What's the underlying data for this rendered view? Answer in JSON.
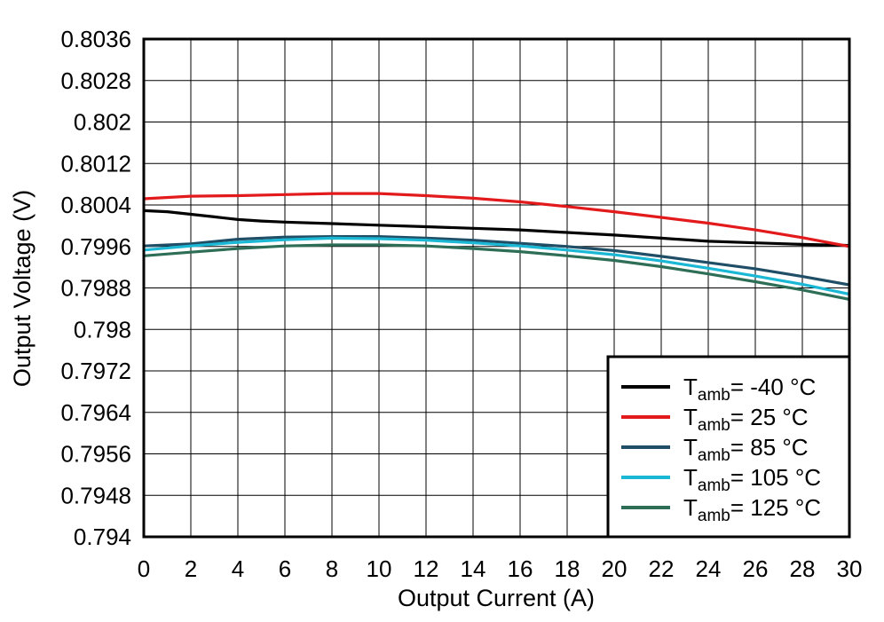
{
  "chart_data": {
    "type": "line",
    "xlabel": "Output Current (A)",
    "ylabel": "Output Voltage (V)",
    "xlim": [
      0,
      30
    ],
    "ylim": [
      0.794,
      0.8036
    ],
    "x_ticks": [
      "0",
      "2",
      "4",
      "6",
      "8",
      "10",
      "12",
      "14",
      "16",
      "18",
      "20",
      "22",
      "24",
      "26",
      "28",
      "30"
    ],
    "y_ticks": [
      "0.8036",
      "0.8028",
      "0.802",
      "0.8012",
      "0.8004",
      "0.7996",
      "0.7988",
      "0.798",
      "0.7972",
      "0.7964",
      "0.7956",
      "0.7948",
      "0.794"
    ],
    "x_tick_values": [
      0,
      2,
      4,
      6,
      8,
      10,
      12,
      14,
      16,
      18,
      20,
      22,
      24,
      26,
      28,
      30
    ],
    "y_tick_values": [
      0.8036,
      0.8028,
      0.802,
      0.8012,
      0.8004,
      0.7996,
      0.7988,
      0.798,
      0.7972,
      0.7964,
      0.7956,
      0.7948,
      0.794
    ],
    "grid": true,
    "legend_position": "bottom-right",
    "series": [
      {
        "name": "T_amb = -40 °C",
        "legend_main": "T",
        "legend_sub": "amb",
        "legend_rest": "= -40 °C",
        "color": "#000000",
        "x": [
          0,
          1,
          2,
          3,
          4,
          5,
          6,
          8,
          10,
          12,
          14,
          16,
          18,
          20,
          22,
          24,
          26,
          28,
          30
        ],
        "y": [
          0.80029,
          0.80027,
          0.80022,
          0.80017,
          0.80012,
          0.80009,
          0.80007,
          0.80004,
          0.80001,
          0.79998,
          0.79995,
          0.79992,
          0.79987,
          0.79982,
          0.79976,
          0.7997,
          0.79967,
          0.79964,
          0.79962
        ]
      },
      {
        "name": "T_amb = 25 °C",
        "legend_main": "T",
        "legend_sub": "amb",
        "legend_rest": "= 25 °C",
        "color": "#e31a1c",
        "x": [
          0,
          2,
          4,
          6,
          8,
          10,
          12,
          14,
          16,
          18,
          20,
          22,
          24,
          26,
          28,
          30
        ],
        "y": [
          0.80052,
          0.80057,
          0.80058,
          0.8006,
          0.80062,
          0.80062,
          0.80058,
          0.80053,
          0.80046,
          0.80037,
          0.80027,
          0.80016,
          0.80005,
          0.79992,
          0.79977,
          0.7996
        ]
      },
      {
        "name": "T_amb = 85 °C",
        "legend_main": "T",
        "legend_sub": "amb",
        "legend_rest": "= 85 °C",
        "color": "#1f4e66",
        "x": [
          0,
          2,
          4,
          6,
          8,
          10,
          12,
          14,
          16,
          18,
          20,
          22,
          24,
          26,
          28,
          30
        ],
        "y": [
          0.79961,
          0.79965,
          0.79974,
          0.79978,
          0.79979,
          0.79979,
          0.79976,
          0.79972,
          0.79966,
          0.7996,
          0.79952,
          0.79941,
          0.79929,
          0.79917,
          0.79902,
          0.79886
        ]
      },
      {
        "name": "T_amb = 105 °C",
        "legend_main": "T",
        "legend_sub": "amb",
        "legend_rest": "= 105 °C",
        "color": "#1ab8d4",
        "x": [
          0,
          2,
          4,
          6,
          8,
          10,
          12,
          14,
          16,
          18,
          20,
          22,
          24,
          26,
          28,
          30
        ],
        "y": [
          0.79953,
          0.79961,
          0.79968,
          0.79973,
          0.79976,
          0.79975,
          0.79972,
          0.79967,
          0.79961,
          0.79953,
          0.79944,
          0.79932,
          0.79918,
          0.79903,
          0.79887,
          0.79868
        ]
      },
      {
        "name": "T_amb = 125 °C",
        "legend_main": "T",
        "legend_sub": "amb",
        "legend_rest": "= 125 °C",
        "color": "#2e6e57",
        "x": [
          0,
          2,
          4,
          6,
          8,
          10,
          12,
          14,
          16,
          18,
          20,
          22,
          24,
          26,
          28,
          30
        ],
        "y": [
          0.79942,
          0.79949,
          0.79956,
          0.79961,
          0.79963,
          0.79963,
          0.79961,
          0.79956,
          0.7995,
          0.79942,
          0.79933,
          0.79921,
          0.79907,
          0.79892,
          0.79876,
          0.79858
        ]
      }
    ]
  }
}
